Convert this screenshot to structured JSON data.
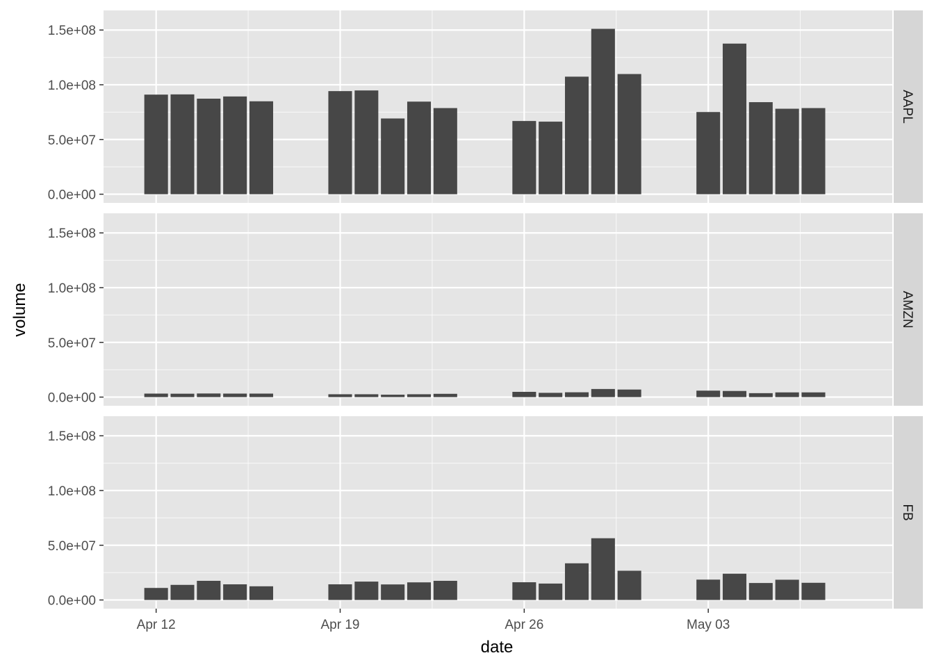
{
  "chart_data": {
    "type": "bar",
    "facet_layout": "rows",
    "xlabel": "date",
    "ylabel": "volume",
    "ylim": [
      0,
      160000000
    ],
    "y_ticks": [
      0,
      50000000,
      100000000,
      150000000
    ],
    "y_tick_labels": [
      "0.0e+00",
      "5.0e+07",
      "1.0e+08",
      "1.5e+08"
    ],
    "x_tick_dates": [
      "2021-04-12",
      "2021-04-19",
      "2021-04-26",
      "2021-05-03"
    ],
    "x_tick_labels": [
      "Apr 12",
      "Apr 19",
      "Apr 26",
      "May 03"
    ],
    "x_range": [
      "2021-04-10",
      "2021-05-10"
    ],
    "dates": [
      "2021-04-12",
      "2021-04-13",
      "2021-04-14",
      "2021-04-15",
      "2021-04-16",
      "2021-04-19",
      "2021-04-20",
      "2021-04-21",
      "2021-04-22",
      "2021-04-23",
      "2021-04-26",
      "2021-04-27",
      "2021-04-28",
      "2021-04-29",
      "2021-04-30",
      "2021-05-03",
      "2021-05-04",
      "2021-05-05",
      "2021-05-06",
      "2021-05-07"
    ],
    "panels": [
      {
        "name": "AAPL",
        "values": [
          91000000,
          91200000,
          87300000,
          89300000,
          84900000,
          94200000,
          94800000,
          69200000,
          84600000,
          78700000,
          66900000,
          66300000,
          107400000,
          151100000,
          109800000,
          75100000,
          137600000,
          84100000,
          78100000,
          78700000
        ]
      },
      {
        "name": "AMZN",
        "values": [
          3200000,
          3100000,
          3300000,
          3200000,
          3200000,
          2600000,
          2600000,
          2200000,
          2600000,
          3000000,
          4800000,
          3900000,
          4400000,
          7400000,
          6900000,
          5900000,
          5600000,
          3600000,
          4300000,
          4300000
        ]
      },
      {
        "name": "FB",
        "values": [
          11000000,
          13800000,
          17500000,
          14300000,
          12500000,
          14300000,
          16800000,
          14200000,
          16100000,
          17500000,
          16200000,
          15000000,
          33500000,
          56400000,
          26700000,
          18600000,
          24000000,
          15500000,
          18500000,
          15700000
        ]
      }
    ],
    "grid": true,
    "colors": {
      "bar": "#474747",
      "panel_background": "#e5e5e5",
      "grid_line": "#ffffff",
      "strip_background": "#d6d6d6"
    }
  }
}
